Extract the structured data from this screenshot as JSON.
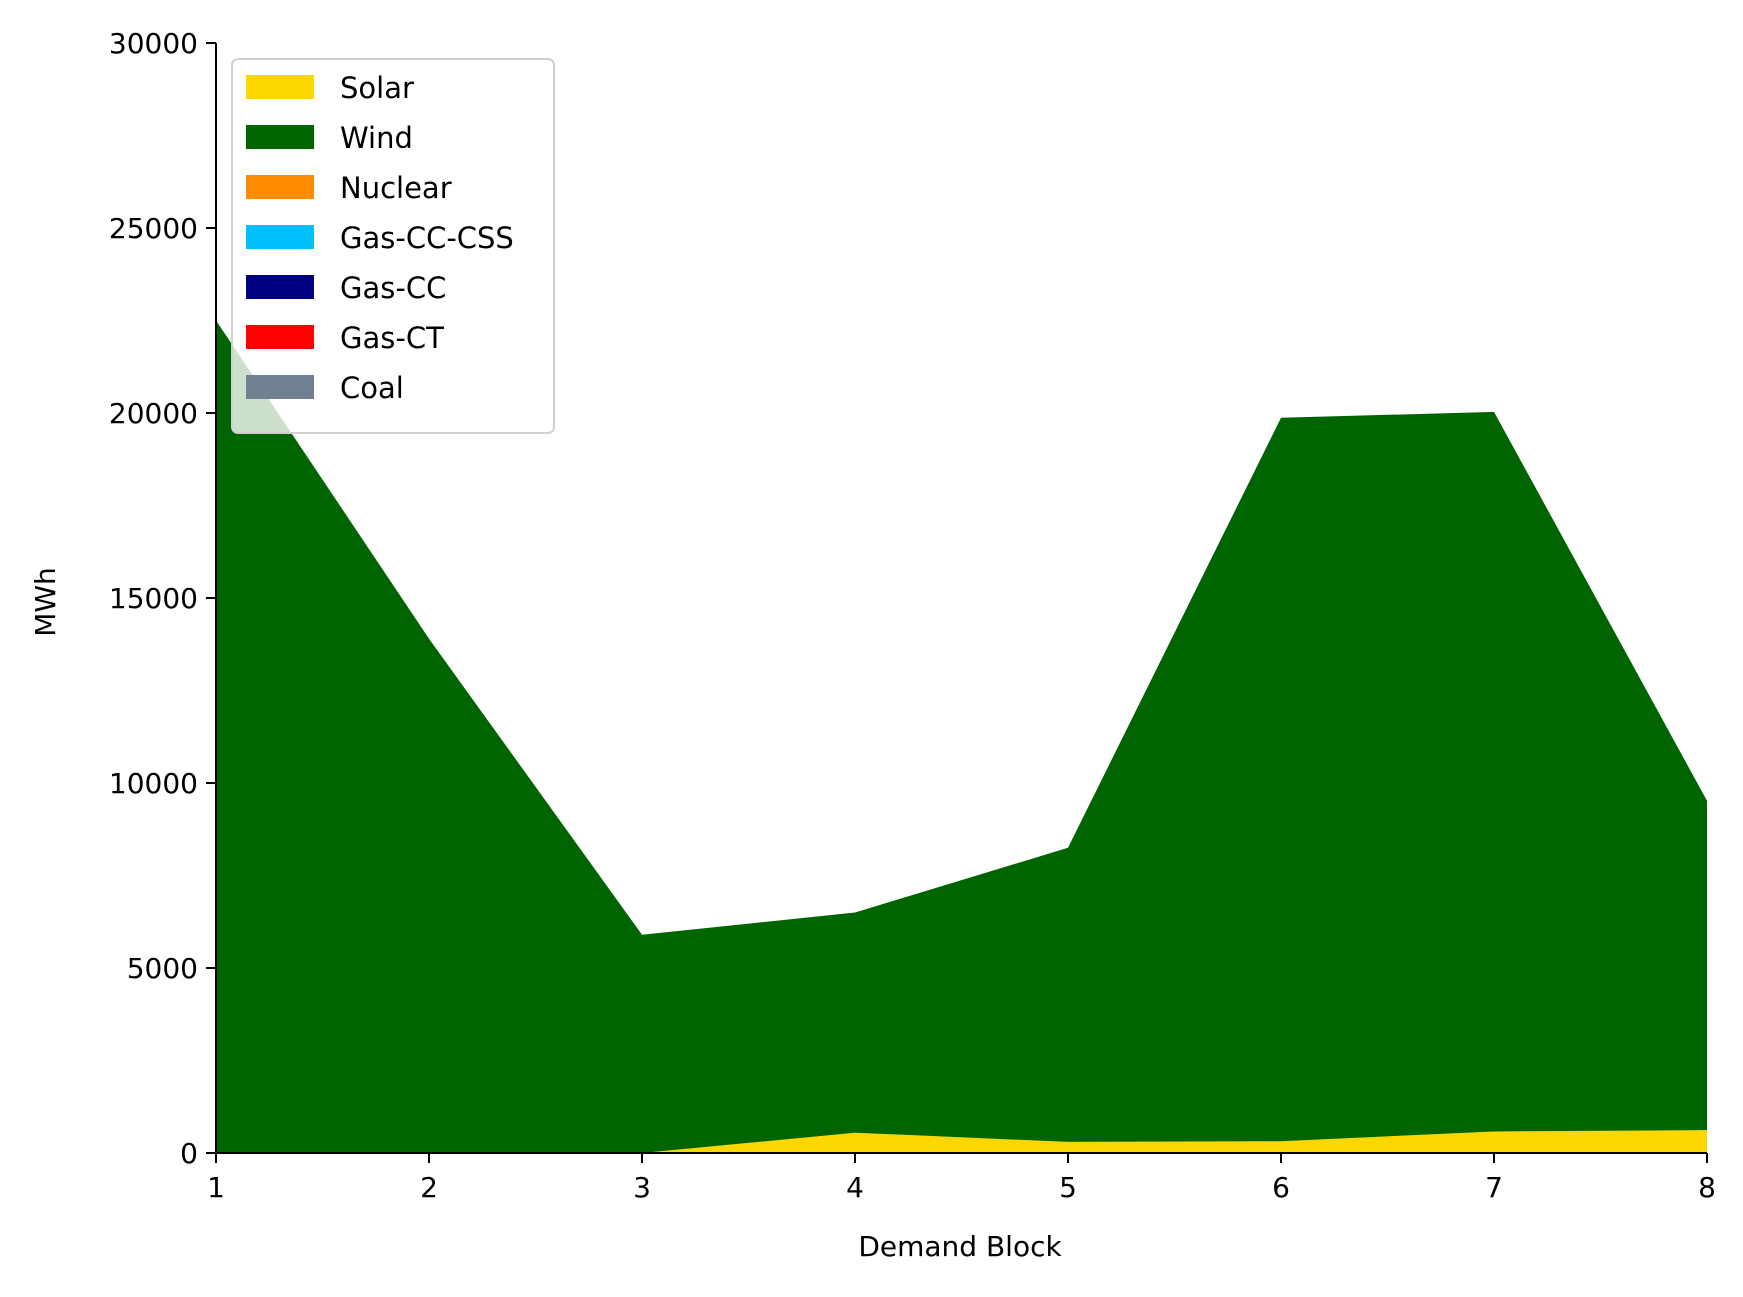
{
  "chart_data": {
    "type": "area",
    "stacked": true,
    "title": "",
    "xlabel": "Demand Block",
    "ylabel": "MWh",
    "x": [
      1,
      2,
      3,
      4,
      5,
      6,
      7,
      8
    ],
    "xlim": [
      1,
      8
    ],
    "ylim": [
      0,
      30000
    ],
    "xticks": [
      "1",
      "2",
      "3",
      "4",
      "5",
      "6",
      "7",
      "8"
    ],
    "yticks": [
      "0",
      "5000",
      "10000",
      "15000",
      "20000",
      "25000",
      "30000"
    ],
    "grid": false,
    "legend_position": "upper left",
    "series": [
      {
        "name": "Solar",
        "color": "#FFD700",
        "values": [
          0,
          0,
          0,
          550,
          300,
          320,
          580,
          620
        ]
      },
      {
        "name": "Wind",
        "color": "#006400",
        "values": [
          22500,
          13900,
          5900,
          5950,
          7950,
          19550,
          19450,
          8900
        ]
      },
      {
        "name": "Nuclear",
        "color": "#FF8C00",
        "values": [
          0,
          0,
          0,
          0,
          0,
          0,
          0,
          0
        ]
      },
      {
        "name": "Gas-CC-CSS",
        "color": "#00BFFF",
        "values": [
          0,
          0,
          0,
          0,
          0,
          0,
          0,
          0
        ]
      },
      {
        "name": "Gas-CC",
        "color": "#000080",
        "values": [
          0,
          0,
          0,
          0,
          0,
          0,
          0,
          0
        ]
      },
      {
        "name": "Gas-CT",
        "color": "#FF0000",
        "values": [
          0,
          0,
          0,
          0,
          0,
          0,
          0,
          0
        ]
      },
      {
        "name": "Coal",
        "color": "#708090",
        "values": [
          0,
          0,
          0,
          0,
          0,
          0,
          0,
          0
        ]
      }
    ]
  }
}
